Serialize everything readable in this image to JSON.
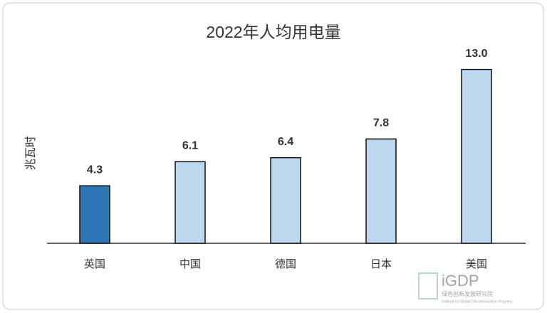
{
  "chart_data": {
    "type": "bar",
    "title": "2022年人均用电量",
    "ylabel": "兆瓦时",
    "categories": [
      "英国",
      "中国",
      "德国",
      "日本",
      "美国"
    ],
    "values": [
      4.3,
      6.1,
      6.4,
      7.8,
      13.0
    ],
    "value_labels": [
      "4.3",
      "6.1",
      "6.4",
      "7.8",
      "13.0"
    ],
    "colors": [
      "#2e75b6",
      "#bdd7ee",
      "#bdd7ee",
      "#bdd7ee",
      "#bdd7ee"
    ],
    "ylim": [
      0,
      15
    ],
    "grid": false,
    "annotations": [
      "iGDP",
      "绿色创新发展研究院",
      "Institute for Global Decarbonization Progress"
    ]
  }
}
